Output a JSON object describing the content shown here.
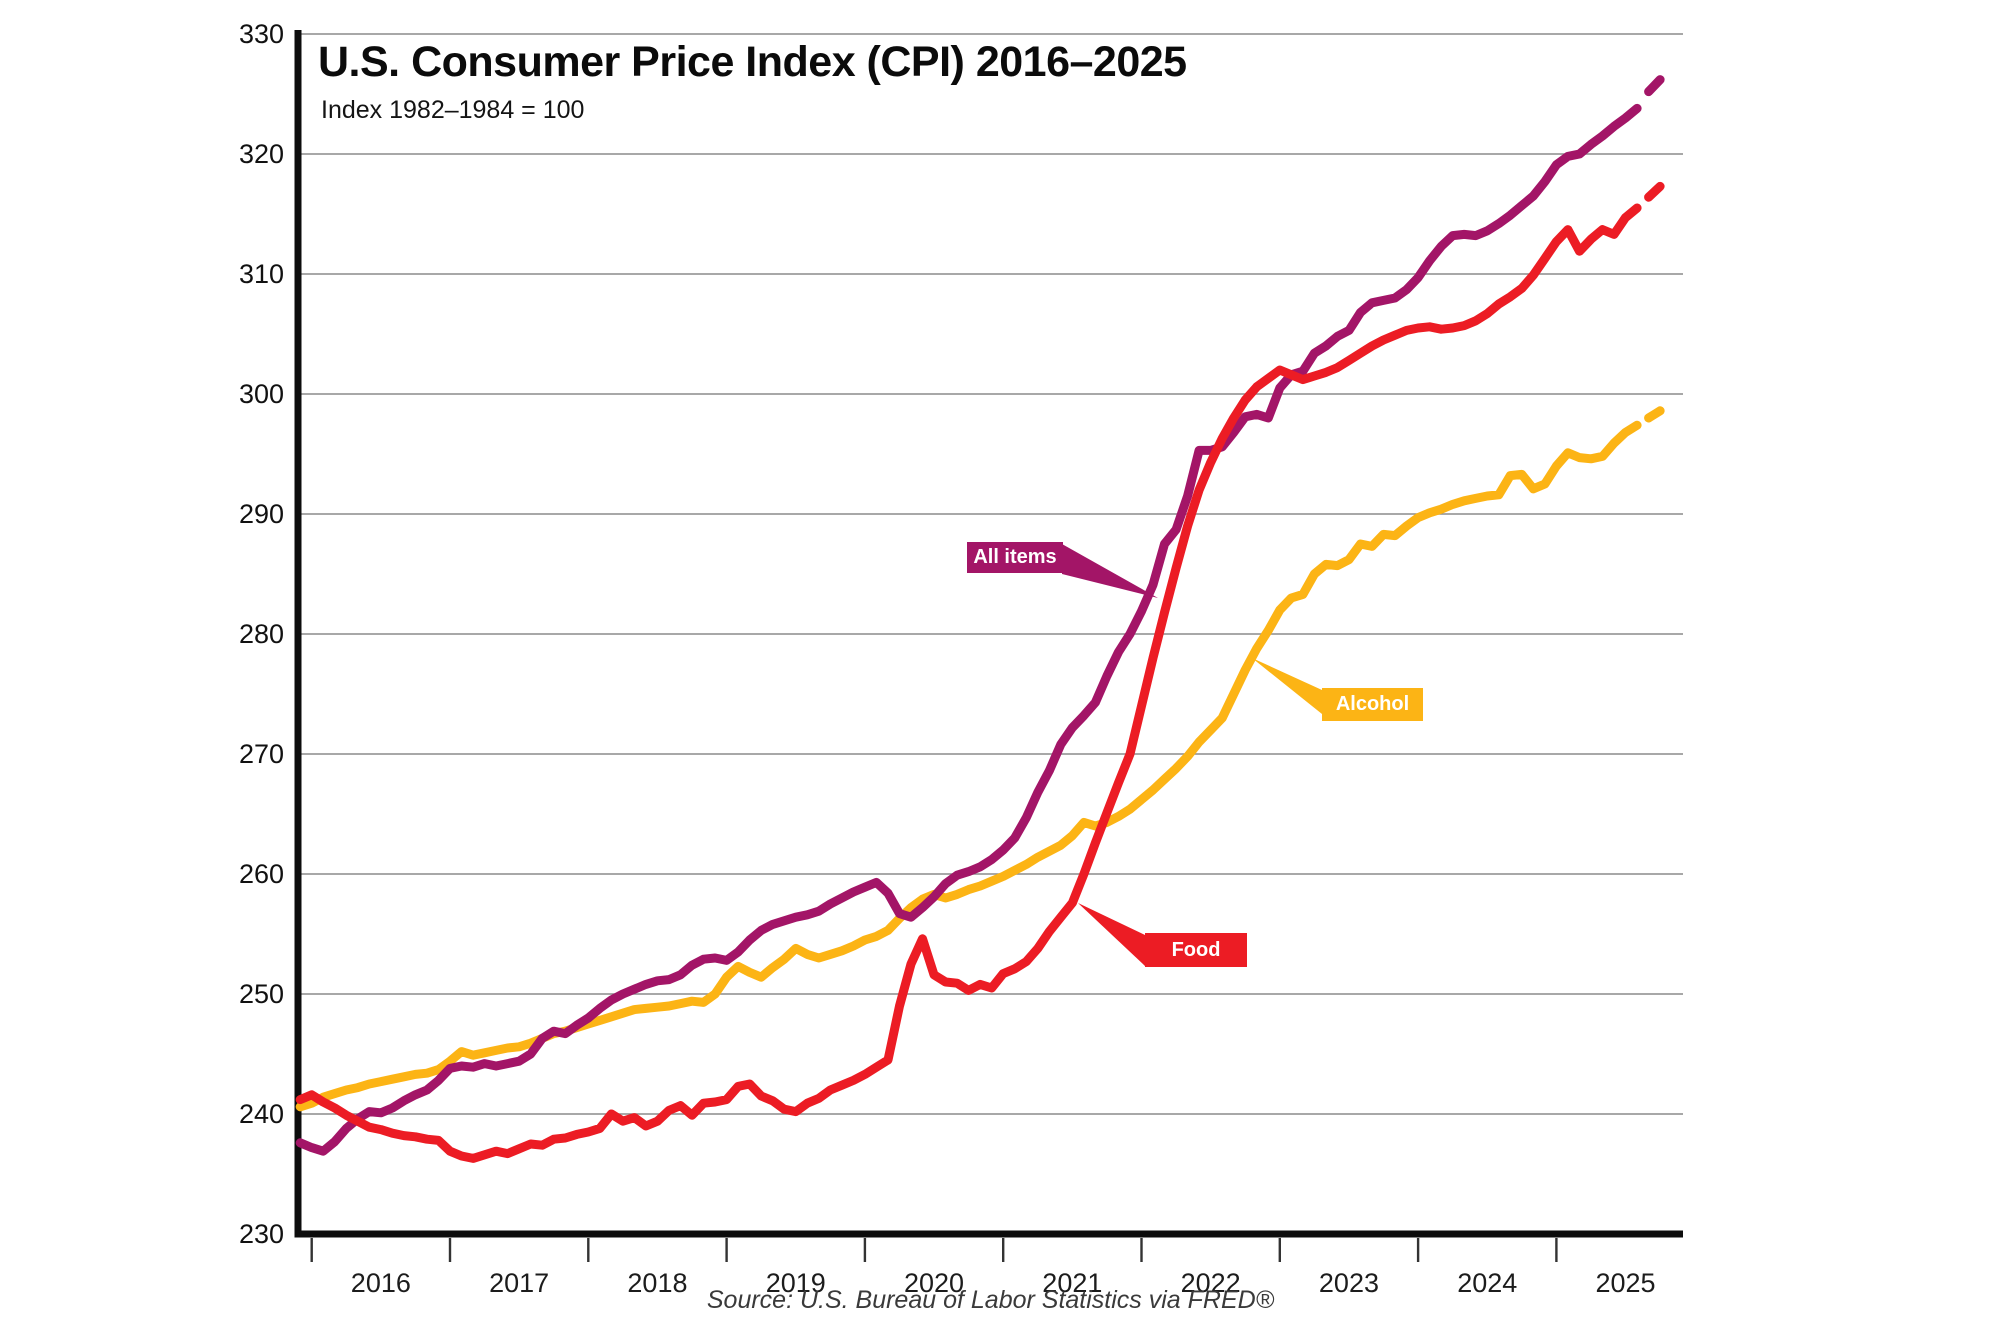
{
  "chart_data": {
    "type": "line",
    "title": "U.S. Consumer Price Index (CPI) 2016–2025",
    "subtitle": "Index 1982–1984 = 100",
    "source": "Source: U.S. Bureau of Labor Statistics via FRED®",
    "grid": true,
    "legend": "inline-callouts",
    "x_axis": {
      "frequency": "monthly",
      "start_month": "2015-12",
      "end_month": "2025-10",
      "tick_years": [
        2016,
        2017,
        2018,
        2019,
        2020,
        2021,
        2022,
        2023,
        2024,
        2025
      ]
    },
    "y_axis": {
      "min": 230,
      "max": 330,
      "step": 10,
      "ticks": [
        230,
        240,
        250,
        260,
        270,
        280,
        290,
        300,
        310,
        320,
        330
      ]
    },
    "dashed_tail_points": 2,
    "style": {
      "grid_color": "#8c8c8c",
      "axis_color": "#0d0d0d",
      "background": "#ffffff",
      "line_width": 9
    },
    "series": [
      {
        "name": "All items",
        "callout": "All items",
        "color": "#A31567",
        "values": [
          237.6,
          237.2,
          236.9,
          237.7,
          238.8,
          239.6,
          240.2,
          240.1,
          240.5,
          241.1,
          241.6,
          242.0,
          242.8,
          243.8,
          244.0,
          243.9,
          244.2,
          244.0,
          244.2,
          244.4,
          245.0,
          246.3,
          246.9,
          246.7,
          247.4,
          248.0,
          248.8,
          249.5,
          250.0,
          250.4,
          250.8,
          251.1,
          251.2,
          251.6,
          252.4,
          252.9,
          253.0,
          252.8,
          253.5,
          254.5,
          255.3,
          255.8,
          256.1,
          256.4,
          256.6,
          256.9,
          257.5,
          258.0,
          258.5,
          258.9,
          259.3,
          258.4,
          256.7,
          256.4,
          257.2,
          258.1,
          259.2,
          259.9,
          260.2,
          260.6,
          261.2,
          262.0,
          263.0,
          264.7,
          266.8,
          268.6,
          270.8,
          272.2,
          273.2,
          274.3,
          276.5,
          278.5,
          280.0,
          281.9,
          284.1,
          287.5,
          288.7,
          291.5,
          295.3,
          295.3,
          295.6,
          296.8,
          298.1,
          298.3,
          298.0,
          300.5,
          301.6,
          301.9,
          303.4,
          304.0,
          304.8,
          305.3,
          306.8,
          307.6,
          307.8,
          308.0,
          308.7,
          309.7,
          311.1,
          312.3,
          313.2,
          313.3,
          313.2,
          313.6,
          314.2,
          314.9,
          315.7,
          316.5,
          317.7,
          319.1,
          319.8,
          320.0,
          320.8,
          321.5,
          322.3,
          323.0,
          323.8,
          325.2,
          326.2
        ]
      },
      {
        "name": "Food",
        "callout": "Food",
        "color": "#EC1C24",
        "values": [
          241.2,
          241.6,
          241.0,
          240.5,
          239.9,
          239.4,
          238.9,
          238.7,
          238.4,
          238.2,
          238.1,
          237.9,
          237.8,
          236.9,
          236.5,
          236.3,
          236.6,
          236.9,
          236.7,
          237.1,
          237.5,
          237.4,
          237.9,
          238.0,
          238.3,
          238.5,
          238.8,
          240.0,
          239.4,
          239.7,
          239.0,
          239.4,
          240.3,
          240.7,
          239.9,
          240.9,
          241.0,
          241.2,
          242.3,
          242.5,
          241.5,
          241.1,
          240.4,
          240.2,
          240.9,
          241.3,
          242.0,
          242.4,
          242.8,
          243.3,
          243.9,
          244.5,
          249.0,
          252.5,
          254.6,
          251.6,
          251.0,
          250.9,
          250.3,
          250.8,
          250.5,
          251.7,
          252.1,
          252.7,
          253.8,
          255.2,
          256.4,
          257.6,
          260.0,
          262.6,
          265.1,
          267.6,
          270.0,
          274.0,
          278.0,
          281.8,
          285.5,
          289.0,
          292.0,
          294.3,
          296.3,
          298.0,
          299.5,
          300.6,
          301.3,
          302.0,
          301.6,
          301.2,
          301.5,
          301.8,
          302.2,
          302.8,
          303.4,
          304.0,
          304.5,
          304.9,
          305.3,
          305.5,
          305.6,
          305.4,
          305.5,
          305.7,
          306.1,
          306.7,
          307.5,
          308.1,
          308.8,
          309.9,
          311.3,
          312.7,
          313.7,
          311.9,
          312.9,
          313.7,
          313.3,
          314.7,
          315.5,
          316.4,
          317.3
        ]
      },
      {
        "name": "Alcohol",
        "callout": "Alcohol",
        "color": "#FCB415",
        "values": [
          240.6,
          240.9,
          241.4,
          241.7,
          242.0,
          242.2,
          242.5,
          242.7,
          242.9,
          243.1,
          243.3,
          243.4,
          243.7,
          244.4,
          245.2,
          244.9,
          245.1,
          245.3,
          245.5,
          245.6,
          245.9,
          246.3,
          246.7,
          246.9,
          247.2,
          247.5,
          247.8,
          248.1,
          248.4,
          248.7,
          248.8,
          248.9,
          249.0,
          249.2,
          249.4,
          249.3,
          250.0,
          251.4,
          252.3,
          251.8,
          251.4,
          252.2,
          252.9,
          253.8,
          253.3,
          253.0,
          253.3,
          253.6,
          254.0,
          254.5,
          254.8,
          255.3,
          256.3,
          257.2,
          257.9,
          258.3,
          258.0,
          258.3,
          258.7,
          259.0,
          259.4,
          259.8,
          260.3,
          260.8,
          261.4,
          261.9,
          262.4,
          263.2,
          264.3,
          264.0,
          264.3,
          264.8,
          265.4,
          266.2,
          267.0,
          267.9,
          268.8,
          269.8,
          271.0,
          272.0,
          273.0,
          275.0,
          277.0,
          278.8,
          280.3,
          282.0,
          283.0,
          283.3,
          285.0,
          285.8,
          285.7,
          286.2,
          287.5,
          287.3,
          288.3,
          288.2,
          289.0,
          289.7,
          290.1,
          290.4,
          290.8,
          291.1,
          291.3,
          291.5,
          291.6,
          293.2,
          293.3,
          292.1,
          292.5,
          294.0,
          295.1,
          294.7,
          294.6,
          294.8,
          295.9,
          296.8,
          297.4,
          298.0,
          298.6
        ]
      }
    ]
  }
}
